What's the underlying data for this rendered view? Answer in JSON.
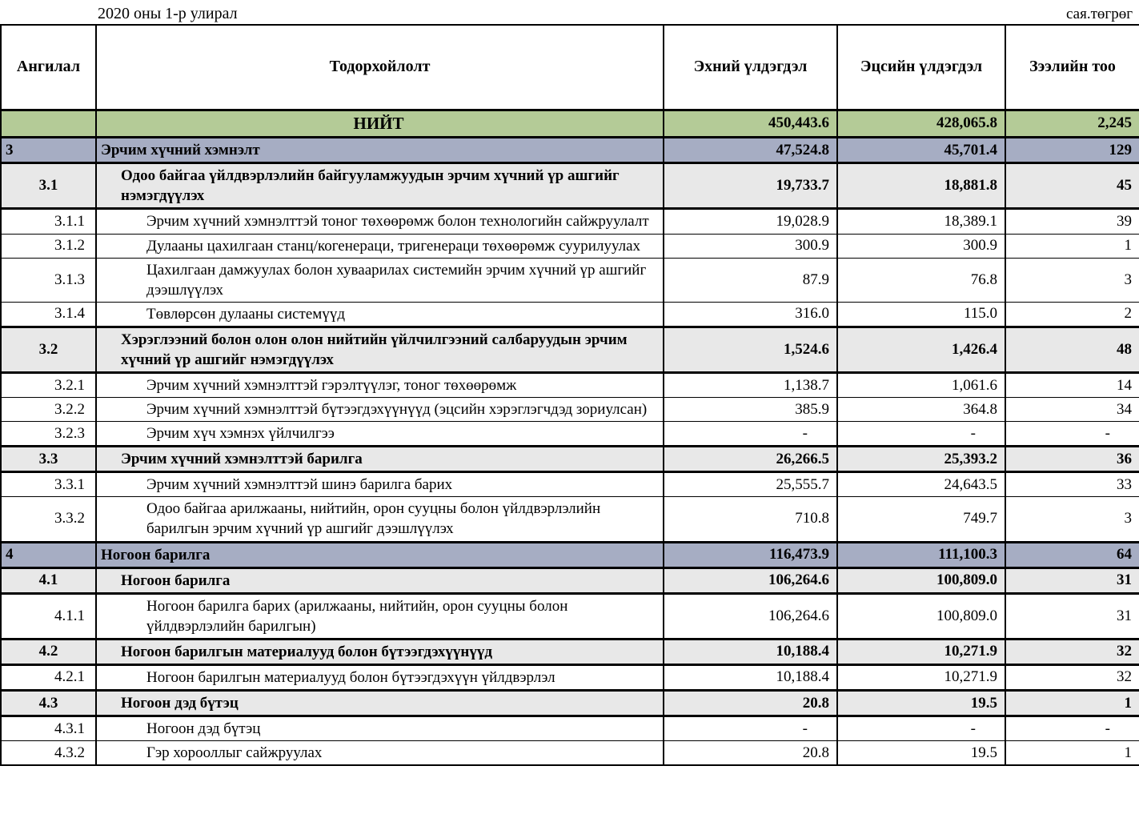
{
  "page": {
    "title": "2020 оны 1-р улирал",
    "unit": "сая.төгрөг"
  },
  "table": {
    "headers": {
      "code": "Ангилал",
      "description": "Тодорхойлолт",
      "begin": "Эхний үлдэгдэл",
      "end": "Эцсийн үлдэгдэл",
      "count": "Зээлийн тоо"
    },
    "colors": {
      "total_row": "#b4cb97",
      "section_row": "#a6adc3",
      "subsection_row": "#e8e8e8",
      "border": "#000000"
    },
    "rows": [
      {
        "code": "",
        "label": "НИЙТ",
        "begin": "450,443.6",
        "end": "428,065.8",
        "count": "2,245",
        "level": "total"
      },
      {
        "code": "3",
        "label": "Эрчим хүчний хэмнэлт",
        "begin": "47,524.8",
        "end": "45,701.4",
        "count": "129",
        "level": "l1"
      },
      {
        "code": "3.1",
        "label": "Одоо байгаа үйлдвэрлэлийн байгууламжуудын эрчим хүчний үр ашгийг нэмэгдүүлэх",
        "begin": "19,733.7",
        "end": "18,881.8",
        "count": "45",
        "level": "l2"
      },
      {
        "code": "3.1.1",
        "label": "Эрчим хүчний хэмнэлттэй тоног төхөөрөмж болон технологийн сайжруулалт",
        "begin": "19,028.9",
        "end": "18,389.1",
        "count": "39",
        "level": "l3"
      },
      {
        "code": "3.1.2",
        "label": "Дулааны цахилгаан станц/когенераци, тригенераци төхөөрөмж суурилуулах",
        "begin": "300.9",
        "end": "300.9",
        "count": "1",
        "level": "l3"
      },
      {
        "code": "3.1.3",
        "label": "Цахилгаан дамжуулах болон хуваарилах системийн эрчим хүчний үр ашгийг дээшлүүлэх",
        "begin": "87.9",
        "end": "76.8",
        "count": "3",
        "level": "l3"
      },
      {
        "code": "3.1.4",
        "label": "Төвлөрсөн дулааны системүүд",
        "begin": "316.0",
        "end": "115.0",
        "count": "2",
        "level": "l3"
      },
      {
        "code": "3.2",
        "label": "Хэрэглээний болон олон олон нийтийн үйлчилгээний салбаруудын эрчим хүчний үр ашгийг нэмэгдүүлэх",
        "begin": "1,524.6",
        "end": "1,426.4",
        "count": "48",
        "level": "l2"
      },
      {
        "code": "3.2.1",
        "label": "Эрчим хүчний хэмнэлттэй гэрэлтүүлэг, тоног төхөөрөмж",
        "begin": "1,138.7",
        "end": "1,061.6",
        "count": "14",
        "level": "l3"
      },
      {
        "code": "3.2.2",
        "label": "Эрчим хүчний хэмнэлттэй бүтээгдэхүүнүүд (эцсийн хэрэглэгчдэд зориулсан)",
        "begin": "385.9",
        "end": "364.8",
        "count": "34",
        "level": "l3"
      },
      {
        "code": "3.2.3",
        "label": "Эрчим хүч хэмнэх үйлчилгээ",
        "begin": "-",
        "end": "-",
        "count": "-",
        "level": "l3"
      },
      {
        "code": "3.3",
        "label": "Эрчим хүчний хэмнэлттэй барилга",
        "begin": "26,266.5",
        "end": "25,393.2",
        "count": "36",
        "level": "l2"
      },
      {
        "code": "3.3.1",
        "label": "Эрчим хүчний хэмнэлттэй шинэ барилга барих",
        "begin": "25,555.7",
        "end": "24,643.5",
        "count": "33",
        "level": "l3"
      },
      {
        "code": "3.3.2",
        "label": "Одоо байгаа арилжааны, нийтийн, орон сууцны болон үйлдвэрлэлийн барилгын эрчим хүчний үр ашгийг дээшлүүлэх",
        "begin": "710.8",
        "end": "749.7",
        "count": "3",
        "level": "l3"
      },
      {
        "code": "4",
        "label": "Ногоон барилга",
        "begin": "116,473.9",
        "end": "111,100.3",
        "count": "64",
        "level": "l1"
      },
      {
        "code": "4.1",
        "label": "Ногоон барилга",
        "begin": "106,264.6",
        "end": "100,809.0",
        "count": "31",
        "level": "l2"
      },
      {
        "code": "4.1.1",
        "label": "Ногоон барилга барих (арилжааны, нийтийн, орон сууцны болон үйлдвэрлэлийн барилгын)",
        "begin": "106,264.6",
        "end": "100,809.0",
        "count": "31",
        "level": "l3"
      },
      {
        "code": "4.2",
        "label": "Ногоон барилгын материалууд болон бүтээгдэхүүнүүд",
        "begin": "10,188.4",
        "end": "10,271.9",
        "count": "32",
        "level": "l2"
      },
      {
        "code": "4.2.1",
        "label": "Ногоон барилгын материалууд болон бүтээгдэхүүн үйлдвэрлэл",
        "begin": "10,188.4",
        "end": "10,271.9",
        "count": "32",
        "level": "l3"
      },
      {
        "code": "4.3",
        "label": "Ногоон дэд бүтэц",
        "begin": "20.8",
        "end": "19.5",
        "count": "1",
        "level": "l2"
      },
      {
        "code": "4.3.1",
        "label": "Ногоон дэд бүтэц",
        "begin": "-",
        "end": "-",
        "count": "-",
        "level": "l3"
      },
      {
        "code": "4.3.2",
        "label": "Гэр хорооллыг сайжруулах",
        "begin": "20.8",
        "end": "19.5",
        "count": "1",
        "level": "l3"
      }
    ]
  }
}
